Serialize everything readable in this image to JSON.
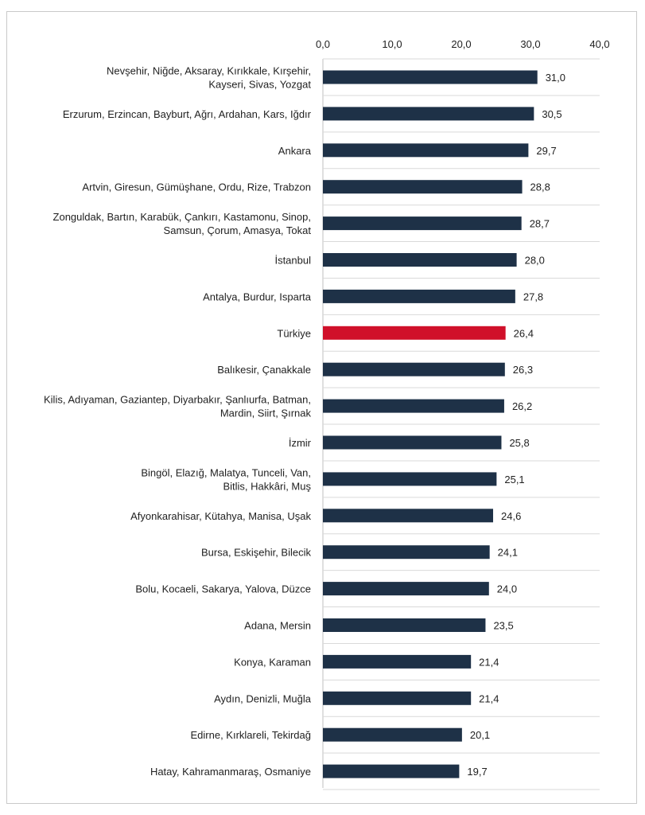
{
  "chart_data": {
    "type": "bar",
    "orientation": "horizontal",
    "xlim": [
      0,
      40
    ],
    "ticks": [
      "0,0",
      "10,0",
      "20,0",
      "30,0",
      "40,0"
    ],
    "tick_values": [
      0,
      10,
      20,
      30,
      40
    ],
    "axis_position": "top",
    "grid": "horizontal separators between categories",
    "categories": [
      [
        "Nevşehir, Niğde, Aksaray, Kırıkkale, Kırşehir,",
        "Kayseri, Sivas, Yozgat"
      ],
      [
        "Erzurum, Erzincan, Bayburt, Ağrı, Ardahan, Kars, Iğdır"
      ],
      [
        "Ankara"
      ],
      [
        "Artvin, Giresun, Gümüşhane, Ordu, Rize, Trabzon"
      ],
      [
        "Zonguldak, Bartın, Karabük, Çankırı, Kastamonu, Sinop,",
        "Samsun, Çorum, Amasya, Tokat"
      ],
      [
        "İstanbul"
      ],
      [
        "Antalya, Burdur, Isparta"
      ],
      [
        "Türkiye"
      ],
      [
        "Balıkesir, Çanakkale"
      ],
      [
        "Kilis, Adıyaman, Gaziantep, Diyarbakır, Şanlıurfa, Batman,",
        "Mardin, Siirt, Şırnak"
      ],
      [
        "İzmir"
      ],
      [
        "Bingöl, Elazığ, Malatya, Tunceli, Van,",
        "Bitlis, Hakkâri, Muş"
      ],
      [
        "Afyonkarahisar, Kütahya, Manisa, Uşak"
      ],
      [
        "Bursa, Eskişehir, Bilecik"
      ],
      [
        "Bolu, Kocaeli, Sakarya, Yalova, Düzce"
      ],
      [
        "Adana, Mersin"
      ],
      [
        "Konya, Karaman"
      ],
      [
        "Aydın, Denizli, Muğla"
      ],
      [
        "Edirne, Kırklareli, Tekirdağ"
      ],
      [
        "Hatay, Kahramanmaraş, Osmaniye"
      ]
    ],
    "values": [
      31.0,
      30.5,
      29.7,
      28.8,
      28.7,
      28.0,
      27.8,
      26.4,
      26.3,
      26.2,
      25.8,
      25.1,
      24.6,
      24.1,
      24.0,
      23.5,
      21.4,
      21.4,
      20.1,
      19.7
    ],
    "value_labels": [
      "31,0",
      "30,5",
      "29,7",
      "28,8",
      "28,7",
      "28,0",
      "27,8",
      "26,4",
      "26,3",
      "26,2",
      "25,8",
      "25,1",
      "24,6",
      "24,1",
      "24,0",
      "23,5",
      "21,4",
      "21,4",
      "20,1",
      "19,7"
    ],
    "highlight_index": 7,
    "colors": {
      "bar": "#1e3147",
      "highlight": "#d0102a",
      "axis": "#bfbfbf",
      "separator": "#d9d9d9",
      "text": "#1f1f1f"
    }
  }
}
